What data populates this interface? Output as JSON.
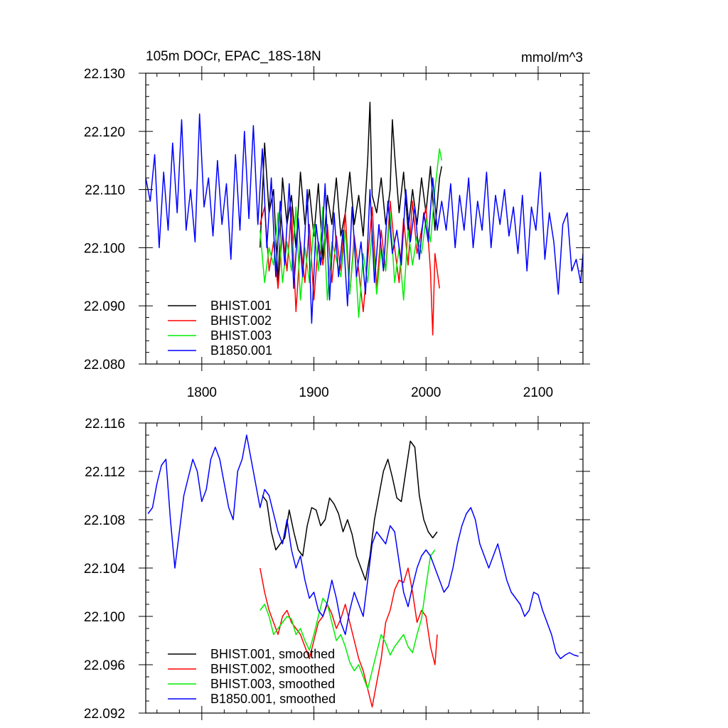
{
  "chart_data": [
    {
      "type": "line",
      "title": "105m DOCr, EPAC_18S-18N",
      "units_label": "mmol/m^3",
      "xlim": [
        1750,
        2140
      ],
      "ylim": [
        22.08,
        22.13
      ],
      "x_ticks": [
        1800,
        1900,
        2000,
        2100
      ],
      "x_tick_labels": [
        "1800",
        "1900",
        "2000",
        "2100"
      ],
      "y_ticks": [
        22.08,
        22.09,
        22.1,
        22.11,
        22.12,
        22.13
      ],
      "y_tick_labels": [
        "22.080",
        "22.090",
        "22.100",
        "22.110",
        "22.120",
        "22.130"
      ],
      "legend_position": "bottom-left",
      "series": [
        {
          "name": "BHIST.001",
          "color": "#000000",
          "x": [
            1852,
            1856,
            1860,
            1864,
            1868,
            1872,
            1876,
            1880,
            1884,
            1888,
            1892,
            1896,
            1900,
            1904,
            1908,
            1912,
            1916,
            1920,
            1924,
            1928,
            1932,
            1936,
            1940,
            1944,
            1948,
            1950,
            1952,
            1956,
            1960,
            1964,
            1968,
            1970,
            1972,
            1976,
            1980,
            1984,
            1988,
            1992,
            1996,
            2000,
            2004,
            2008,
            2012,
            2014
          ],
          "y": [
            22.1,
            22.118,
            22.106,
            22.11,
            22.094,
            22.112,
            22.104,
            22.109,
            22.1,
            22.113,
            22.104,
            22.11,
            22.102,
            22.111,
            22.098,
            22.109,
            22.104,
            22.112,
            22.102,
            22.106,
            22.113,
            22.104,
            22.109,
            22.102,
            22.115,
            22.125,
            22.109,
            22.106,
            22.112,
            22.104,
            22.11,
            22.122,
            22.116,
            22.106,
            22.113,
            22.103,
            22.11,
            22.104,
            22.112,
            22.106,
            22.114,
            22.103,
            22.112,
            22.114
          ]
        },
        {
          "name": "BHIST.002",
          "color": "#ff0000",
          "x": [
            1852,
            1856,
            1860,
            1864,
            1868,
            1872,
            1876,
            1880,
            1884,
            1888,
            1892,
            1896,
            1900,
            1904,
            1908,
            1912,
            1916,
            1920,
            1924,
            1928,
            1932,
            1936,
            1940,
            1944,
            1948,
            1952,
            1956,
            1960,
            1964,
            1968,
            1972,
            1976,
            1980,
            1984,
            1988,
            1992,
            1996,
            2000,
            2004,
            2006,
            2008,
            2012
          ],
          "y": [
            22.104,
            22.107,
            22.096,
            22.101,
            22.093,
            22.103,
            22.096,
            22.107,
            22.089,
            22.101,
            22.094,
            22.104,
            22.091,
            22.101,
            22.097,
            22.104,
            22.094,
            22.102,
            22.096,
            22.106,
            22.092,
            22.102,
            22.096,
            22.089,
            22.098,
            22.107,
            22.093,
            22.103,
            22.096,
            22.108,
            22.1,
            22.094,
            22.105,
            22.097,
            22.108,
            22.099,
            22.103,
            22.107,
            22.096,
            22.085,
            22.099,
            22.093
          ]
        },
        {
          "name": "BHIST.003",
          "color": "#00ee00",
          "x": [
            1852,
            1856,
            1860,
            1864,
            1868,
            1872,
            1876,
            1880,
            1884,
            1888,
            1892,
            1896,
            1900,
            1904,
            1908,
            1912,
            1916,
            1920,
            1924,
            1928,
            1932,
            1936,
            1940,
            1944,
            1948,
            1952,
            1956,
            1960,
            1964,
            1968,
            1972,
            1976,
            1980,
            1984,
            1988,
            1992,
            1996,
            2000,
            2004,
            2008,
            2012,
            2014
          ],
          "y": [
            22.103,
            22.094,
            22.1,
            22.097,
            22.106,
            22.094,
            22.101,
            22.096,
            22.107,
            22.091,
            22.1,
            22.094,
            22.104,
            22.096,
            22.107,
            22.091,
            22.101,
            22.098,
            22.095,
            22.103,
            22.092,
            22.101,
            22.088,
            22.099,
            22.094,
            22.103,
            22.092,
            22.1,
            22.096,
            22.106,
            22.094,
            22.1,
            22.091,
            22.103,
            22.097,
            22.102,
            22.099,
            22.105,
            22.101,
            22.11,
            22.117,
            22.115
          ]
        },
        {
          "name": "B1850.001",
          "color": "#0000ff",
          "x": [
            1750,
            1754,
            1758,
            1762,
            1766,
            1770,
            1774,
            1778,
            1782,
            1786,
            1790,
            1794,
            1798,
            1802,
            1806,
            1810,
            1814,
            1818,
            1822,
            1826,
            1830,
            1834,
            1838,
            1842,
            1846,
            1850,
            1854,
            1858,
            1862,
            1866,
            1870,
            1874,
            1878,
            1882,
            1886,
            1890,
            1894,
            1898,
            1902,
            1906,
            1910,
            1914,
            1918,
            1922,
            1926,
            1930,
            1934,
            1938,
            1942,
            1946,
            1950,
            1954,
            1958,
            1962,
            1966,
            1970,
            1974,
            1978,
            1982,
            1986,
            1990,
            1994,
            1998,
            2002,
            2006,
            2010,
            2014,
            2018,
            2022,
            2026,
            2030,
            2034,
            2038,
            2042,
            2046,
            2050,
            2054,
            2058,
            2062,
            2066,
            2070,
            2074,
            2078,
            2082,
            2086,
            2090,
            2094,
            2098,
            2102,
            2106,
            2110,
            2114,
            2118,
            2122,
            2126,
            2130,
            2134,
            2138,
            2140
          ],
          "y": [
            22.112,
            22.108,
            22.116,
            22.1,
            22.113,
            22.103,
            22.118,
            22.106,
            22.122,
            22.103,
            22.11,
            22.101,
            22.123,
            22.107,
            22.112,
            22.102,
            22.115,
            22.104,
            22.111,
            22.098,
            22.116,
            22.103,
            22.12,
            22.105,
            22.121,
            22.104,
            22.117,
            22.1,
            22.112,
            22.095,
            22.108,
            22.097,
            22.111,
            22.093,
            22.105,
            22.095,
            22.11,
            22.087,
            22.104,
            22.097,
            22.111,
            22.091,
            22.106,
            22.095,
            22.103,
            22.09,
            22.107,
            22.095,
            22.101,
            22.092,
            22.11,
            22.094,
            22.104,
            22.096,
            22.108,
            22.099,
            22.103,
            22.097,
            22.11,
            22.101,
            22.107,
            22.098,
            22.106,
            22.101,
            22.112,
            22.103,
            22.108,
            22.103,
            22.111,
            22.1,
            22.109,
            22.103,
            22.112,
            22.1,
            22.108,
            22.103,
            22.113,
            22.1,
            22.109,
            22.104,
            22.11,
            22.102,
            22.107,
            22.099,
            22.109,
            22.096,
            22.107,
            22.103,
            22.113,
            22.098,
            22.106,
            22.101,
            22.092,
            22.104,
            22.106,
            22.096,
            22.098,
            22.094,
            22.099
          ]
        }
      ]
    },
    {
      "type": "line",
      "title": "",
      "xlim": [
        1750,
        2140
      ],
      "ylim": [
        22.092,
        22.116
      ],
      "x_ticks": [
        1800,
        1900,
        2000,
        2100
      ],
      "x_tick_labels": [],
      "y_ticks": [
        22.092,
        22.096,
        22.1,
        22.104,
        22.108,
        22.112,
        22.116
      ],
      "y_tick_labels": [
        "22.092",
        "22.096",
        "22.100",
        "22.104",
        "22.108",
        "22.112",
        "22.116"
      ],
      "legend_position": "bottom-left",
      "series": [
        {
          "name": "BHIST.001, smoothed",
          "color": "#000000",
          "x": [
            1854,
            1858,
            1862,
            1866,
            1870,
            1874,
            1878,
            1882,
            1886,
            1890,
            1894,
            1898,
            1902,
            1906,
            1910,
            1914,
            1918,
            1922,
            1926,
            1930,
            1934,
            1938,
            1942,
            1946,
            1950,
            1954,
            1958,
            1962,
            1966,
            1970,
            1974,
            1978,
            1982,
            1986,
            1990,
            1994,
            1998,
            2002,
            2006,
            2010
          ],
          "y": [
            22.11,
            22.1095,
            22.107,
            22.1055,
            22.106,
            22.1065,
            22.1088,
            22.107,
            22.1055,
            22.105,
            22.1075,
            22.109,
            22.1088,
            22.1075,
            22.108,
            22.1098,
            22.1093,
            22.1085,
            22.107,
            22.108,
            22.1068,
            22.105,
            22.104,
            22.103,
            22.105,
            22.108,
            22.11,
            22.112,
            22.113,
            22.1115,
            22.1098,
            22.1095,
            22.112,
            22.1145,
            22.114,
            22.11,
            22.108,
            22.107,
            22.1065,
            22.107
          ]
        },
        {
          "name": "BHIST.002, smoothed",
          "color": "#ff0000",
          "x": [
            1852,
            1856,
            1860,
            1864,
            1868,
            1872,
            1876,
            1880,
            1884,
            1888,
            1892,
            1896,
            1900,
            1904,
            1908,
            1912,
            1916,
            1920,
            1924,
            1928,
            1932,
            1936,
            1940,
            1944,
            1948,
            1952,
            1956,
            1960,
            1964,
            1968,
            1972,
            1976,
            1980,
            1984,
            1988,
            1992,
            1996,
            2000,
            2004,
            2008,
            2010
          ],
          "y": [
            22.104,
            22.102,
            22.1005,
            22.0995,
            22.0985,
            22.1,
            22.1005,
            22.0995,
            22.099,
            22.0985,
            22.0975,
            22.0965,
            22.098,
            22.0995,
            22.1,
            22.101,
            22.1002,
            22.099,
            22.0998,
            22.101,
            22.0995,
            22.098,
            22.0965,
            22.0955,
            22.094,
            22.0925,
            22.0945,
            22.0965,
            22.0995,
            22.1005,
            22.1022,
            22.103,
            22.1028,
            22.104,
            22.102,
            22.0995,
            22.1005,
            22.1,
            22.0975,
            22.096,
            22.0985
          ]
        },
        {
          "name": "BHIST.003, smoothed",
          "color": "#00ee00",
          "x": [
            1852,
            1856,
            1860,
            1864,
            1868,
            1872,
            1876,
            1880,
            1884,
            1888,
            1892,
            1896,
            1900,
            1904,
            1908,
            1912,
            1916,
            1920,
            1924,
            1928,
            1932,
            1936,
            1940,
            1944,
            1948,
            1952,
            1956,
            1960,
            1964,
            1968,
            1972,
            1976,
            1980,
            1984,
            1988,
            1992,
            1996,
            2000,
            2004,
            2008
          ],
          "y": [
            22.1005,
            22.101,
            22.1,
            22.0985,
            22.099,
            22.0995,
            22.1,
            22.0998,
            22.0985,
            22.099,
            22.098,
            22.0972,
            22.0985,
            22.1,
            22.1015,
            22.101,
            22.0995,
            22.098,
            22.0985,
            22.0975,
            22.0962,
            22.0955,
            22.096,
            22.095,
            22.094,
            22.0955,
            22.097,
            22.0985,
            22.0978,
            22.0968,
            22.0975,
            22.098,
            22.0985,
            22.0975,
            22.097,
            22.0985,
            22.0998,
            22.1025,
            22.105,
            22.1055
          ]
        },
        {
          "name": "B1850.001, smoothed",
          "color": "#0000ff",
          "x": [
            1752,
            1756,
            1760,
            1764,
            1768,
            1772,
            1776,
            1780,
            1784,
            1788,
            1792,
            1796,
            1800,
            1804,
            1808,
            1812,
            1816,
            1820,
            1824,
            1828,
            1832,
            1836,
            1840,
            1844,
            1848,
            1852,
            1856,
            1860,
            1864,
            1868,
            1872,
            1876,
            1880,
            1884,
            1888,
            1892,
            1896,
            1900,
            1904,
            1908,
            1912,
            1916,
            1920,
            1924,
            1928,
            1932,
            1936,
            1940,
            1944,
            1948,
            1952,
            1956,
            1960,
            1964,
            1968,
            1972,
            1976,
            1980,
            1984,
            1988,
            1992,
            1996,
            2000,
            2004,
            2008,
            2012,
            2016,
            2020,
            2024,
            2028,
            2032,
            2036,
            2040,
            2044,
            2048,
            2052,
            2056,
            2060,
            2064,
            2068,
            2072,
            2076,
            2080,
            2084,
            2088,
            2092,
            2096,
            2100,
            2104,
            2108,
            2112,
            2116,
            2120,
            2124,
            2128,
            2132,
            2136
          ],
          "y": [
            22.1085,
            22.109,
            22.111,
            22.1125,
            22.113,
            22.108,
            22.104,
            22.107,
            22.11,
            22.1115,
            22.113,
            22.112,
            22.1095,
            22.1105,
            22.113,
            22.114,
            22.113,
            22.111,
            22.109,
            22.108,
            22.112,
            22.113,
            22.115,
            22.113,
            22.111,
            22.109,
            22.1105,
            22.11,
            22.1085,
            22.107,
            22.106,
            22.108,
            22.1055,
            22.104,
            22.105,
            22.103,
            22.1015,
            22.102,
            22.1005,
            22.1,
            22.1012,
            22.103,
            22.1015,
            22.0995,
            22.0985,
            22.1005,
            22.102,
            22.101,
            22.1,
            22.103,
            22.106,
            22.107,
            22.1065,
            22.106,
            22.1075,
            22.107,
            22.1045,
            22.102,
            22.1008,
            22.1025,
            22.104,
            22.105,
            22.1055,
            22.105,
            22.104,
            22.103,
            22.102,
            22.1025,
            22.104,
            22.106,
            22.1075,
            22.1085,
            22.109,
            22.108,
            22.106,
            22.105,
            22.104,
            22.105,
            22.106,
            22.1045,
            22.103,
            22.102,
            22.1015,
            22.101,
            22.1,
            22.1005,
            22.102,
            22.1018,
            22.1005,
            22.0995,
            22.0985,
            22.097,
            22.0965,
            22.0968,
            22.097,
            22.0968,
            22.0967
          ]
        }
      ]
    }
  ]
}
